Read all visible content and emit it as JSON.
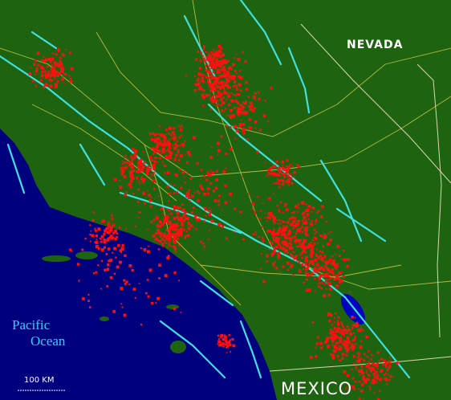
{
  "labels": {
    "state": "NEVADA",
    "ocean": [
      "Pacific",
      "Ocean"
    ],
    "scale": "100 KM",
    "country": "MEXICO"
  }
}
